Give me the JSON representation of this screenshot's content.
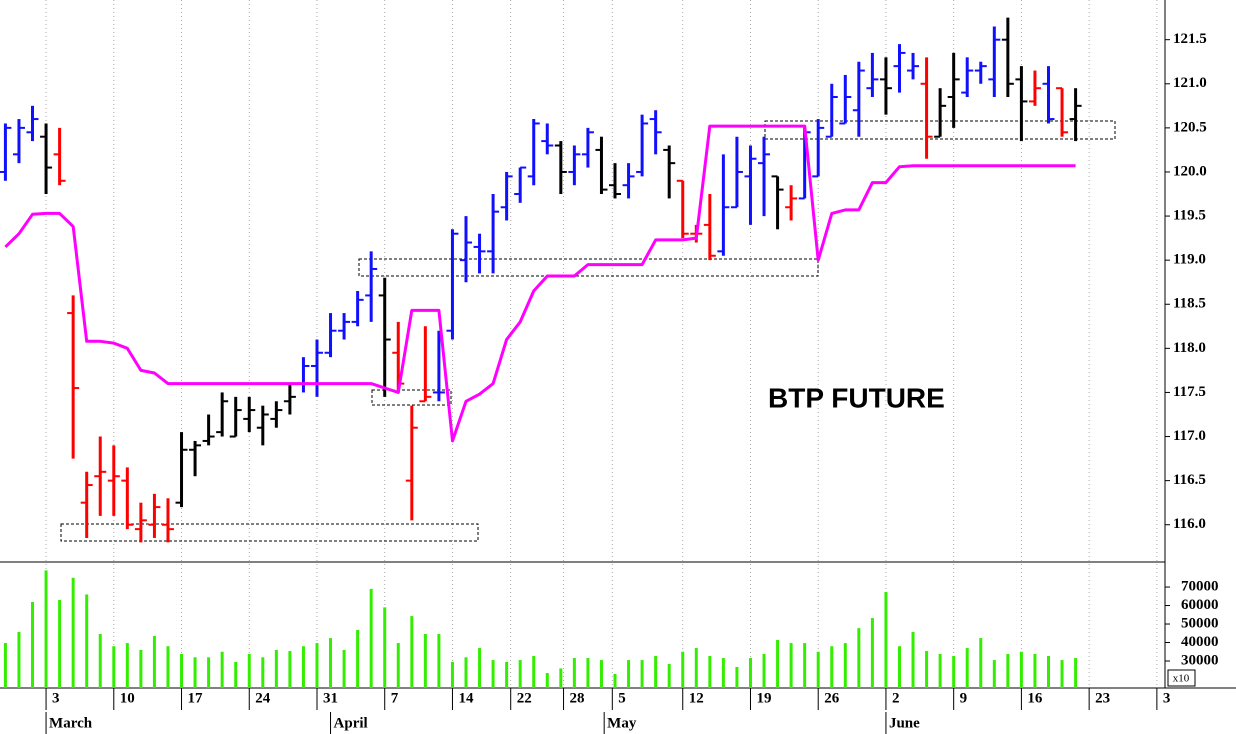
{
  "chart_data": [
    {
      "type": "ohlc",
      "title": "BTP FUTURE",
      "x": [
        0,
        1,
        2,
        3,
        4,
        5,
        6,
        7,
        8,
        9,
        10,
        11,
        12,
        13,
        14,
        15,
        16,
        17,
        18,
        19,
        20,
        21,
        22,
        23,
        24,
        25,
        26,
        27,
        28,
        29,
        30,
        31,
        32,
        33,
        34,
        35,
        36,
        37,
        38,
        39,
        40,
        41,
        42,
        43,
        44,
        45,
        46,
        47,
        48,
        49,
        50,
        51,
        52,
        53,
        54,
        55,
        56,
        57,
        58,
        59,
        60,
        61,
        62,
        63,
        64,
        65,
        66,
        67,
        68,
        69,
        70,
        71,
        72,
        73,
        74,
        75,
        76,
        77,
        78,
        79
      ],
      "open": [
        120.0,
        120.2,
        120.45,
        120.4,
        120.2,
        118.4,
        116.25,
        116.55,
        116.5,
        116.5,
        115.95,
        116.0,
        116.0,
        116.25,
        116.85,
        116.95,
        117.05,
        117.0,
        117.2,
        117.1,
        117.2,
        117.4,
        117.6,
        117.8,
        117.95,
        118.2,
        118.3,
        118.6,
        118.6,
        117.95,
        116.5,
        117.4,
        117.5,
        118.2,
        119.0,
        119.15,
        119.1,
        119.6,
        119.75,
        119.95,
        120.35,
        120.3,
        120.0,
        120.2,
        120.25,
        119.85,
        119.85,
        120.0,
        120.6,
        120.25,
        119.9,
        119.3,
        119.4,
        119.1,
        119.6,
        119.95,
        120.1,
        119.95,
        119.6,
        119.7,
        119.95,
        120.4,
        120.55,
        120.7,
        120.95,
        121.05,
        121.2,
        121.15,
        121.0,
        120.4,
        120.85,
        120.9,
        121.15,
        121.05,
        121.5,
        121.05,
        120.8,
        121.0,
        120.95,
        120.6
      ],
      "high": [
        120.55,
        120.6,
        120.75,
        120.55,
        120.5,
        118.6,
        116.6,
        117.0,
        116.9,
        116.65,
        116.25,
        116.35,
        116.3,
        117.05,
        116.95,
        117.25,
        117.5,
        117.45,
        117.45,
        117.35,
        117.4,
        117.6,
        117.9,
        118.1,
        118.4,
        118.4,
        118.65,
        119.1,
        118.8,
        118.3,
        117.35,
        118.25,
        118.2,
        119.35,
        119.5,
        119.3,
        119.75,
        120.0,
        120.05,
        120.6,
        120.55,
        120.35,
        120.3,
        120.5,
        120.4,
        120.1,
        120.1,
        120.65,
        120.7,
        120.3,
        119.9,
        119.4,
        119.75,
        120.2,
        120.4,
        120.3,
        120.4,
        119.95,
        119.85,
        120.5,
        120.6,
        121.0,
        121.1,
        121.25,
        121.35,
        121.3,
        121.45,
        121.35,
        121.3,
        120.95,
        121.35,
        121.3,
        121.25,
        121.65,
        121.75,
        121.2,
        121.15,
        121.2,
        120.95,
        120.95
      ],
      "low": [
        119.9,
        120.1,
        120.35,
        119.75,
        119.85,
        116.75,
        115.85,
        116.1,
        116.1,
        115.95,
        115.8,
        115.85,
        115.8,
        116.2,
        116.55,
        116.9,
        117.0,
        117.0,
        117.05,
        116.9,
        117.1,
        117.25,
        117.5,
        117.45,
        117.9,
        118.1,
        118.25,
        118.3,
        117.45,
        117.5,
        116.05,
        117.4,
        117.4,
        118.1,
        118.75,
        118.85,
        118.85,
        119.45,
        119.65,
        119.85,
        120.2,
        119.75,
        119.85,
        120.05,
        119.75,
        119.7,
        119.7,
        119.95,
        120.2,
        119.7,
        119.25,
        119.2,
        119.0,
        119.05,
        119.6,
        119.4,
        119.5,
        119.35,
        119.45,
        119.7,
        119.95,
        120.4,
        120.55,
        120.4,
        120.85,
        120.65,
        120.9,
        121.05,
        120.15,
        120.4,
        120.5,
        120.85,
        121.0,
        120.85,
        120.85,
        120.35,
        120.75,
        120.55,
        120.4,
        120.35
      ],
      "close": [
        120.5,
        120.5,
        120.6,
        120.05,
        119.9,
        117.55,
        116.45,
        116.6,
        116.55,
        116.0,
        116.05,
        116.2,
        115.95,
        116.85,
        116.9,
        117.0,
        117.4,
        117.3,
        117.3,
        117.25,
        117.3,
        117.45,
        117.8,
        117.95,
        118.2,
        118.3,
        118.55,
        118.9,
        118.1,
        117.6,
        117.1,
        117.45,
        117.5,
        119.3,
        119.2,
        119.1,
        119.55,
        119.95,
        120.05,
        120.55,
        120.3,
        120.0,
        120.2,
        120.45,
        119.8,
        119.75,
        119.95,
        120.55,
        120.45,
        120.1,
        119.3,
        119.3,
        119.05,
        119.6,
        120.0,
        120.15,
        120.2,
        119.8,
        119.7,
        120.45,
        120.5,
        120.85,
        120.85,
        121.15,
        121.05,
        120.95,
        121.35,
        121.2,
        120.4,
        120.75,
        121.05,
        121.15,
        121.2,
        121.5,
        121.0,
        120.8,
        120.95,
        120.6,
        120.45,
        120.75
      ],
      "colors": [
        "#1010ff",
        "#1010ff",
        "#1010ff",
        "#000000",
        "#ff0000",
        "#ff0000",
        "#ff0000",
        "#ff0000",
        "#ff0000",
        "#ff0000",
        "#ff0000",
        "#ff0000",
        "#ff0000",
        "#000000",
        "#000000",
        "#000000",
        "#000000",
        "#000000",
        "#000000",
        "#000000",
        "#000000",
        "#000000",
        "#1010ff",
        "#1010ff",
        "#1010ff",
        "#1010ff",
        "#1010ff",
        "#1010ff",
        "#000000",
        "#ff0000",
        "#ff0000",
        "#ff0000",
        "#1010ff",
        "#1010ff",
        "#1010ff",
        "#1010ff",
        "#1010ff",
        "#1010ff",
        "#1010ff",
        "#1010ff",
        "#1010ff",
        "#000000",
        "#1010ff",
        "#1010ff",
        "#000000",
        "#000000",
        "#1010ff",
        "#1010ff",
        "#1010ff",
        "#000000",
        "#ff0000",
        "#ff0000",
        "#ff0000",
        "#1010ff",
        "#1010ff",
        "#1010ff",
        "#1010ff",
        "#000000",
        "#ff0000",
        "#1010ff",
        "#1010ff",
        "#1010ff",
        "#1010ff",
        "#1010ff",
        "#1010ff",
        "#000000",
        "#1010ff",
        "#1010ff",
        "#ff0000",
        "#000000",
        "#000000",
        "#1010ff",
        "#1010ff",
        "#1010ff",
        "#000000",
        "#000000",
        "#ff0000",
        "#1010ff",
        "#ff0000",
        "#000000"
      ],
      "line": {
        "color": "#ff00ff",
        "values": [
          119.15,
          119.3,
          119.52,
          119.53,
          119.53,
          119.38,
          118.08,
          118.08,
          118.06,
          118.0,
          117.75,
          117.72,
          117.6,
          117.6,
          117.6,
          117.6,
          117.6,
          117.6,
          117.6,
          117.6,
          117.6,
          117.6,
          117.6,
          117.6,
          117.6,
          117.6,
          117.6,
          117.6,
          117.55,
          117.5,
          118.43,
          118.43,
          118.43,
          116.95,
          117.4,
          117.48,
          117.6,
          118.1,
          118.3,
          118.65,
          118.82,
          118.82,
          118.82,
          118.95,
          118.95,
          118.95,
          118.95,
          118.95,
          119.23,
          119.23,
          119.23,
          119.25,
          120.52,
          120.52,
          120.52,
          120.52,
          120.52,
          120.52,
          120.52,
          120.52,
          119.0,
          119.53,
          119.57,
          119.57,
          119.88,
          119.88,
          120.06,
          120.07,
          120.07,
          120.07,
          120.07,
          120.07,
          120.07,
          120.07,
          120.07,
          120.07,
          120.07,
          120.07,
          120.07,
          120.07
        ]
      },
      "xlim": [
        -0.4,
        85.6
      ],
      "ylim": [
        115.6,
        121.95
      ],
      "yticks": [
        {
          "value": 116.0,
          "label": "116.0"
        },
        116.5,
        {
          "value": 117.0,
          "label": "117.0"
        },
        117.5,
        {
          "value": 118.0,
          "label": "118.0"
        },
        118.5,
        {
          "value": 119.0,
          "label": "119.0"
        },
        119.5,
        {
          "value": 120.0,
          "label": "120.0"
        },
        120.5,
        {
          "value": 121.0,
          "label": "121.0"
        },
        121.5
      ]
    },
    {
      "type": "bar",
      "x": [
        0,
        1,
        2,
        3,
        4,
        5,
        6,
        7,
        8,
        9,
        10,
        11,
        12,
        13,
        14,
        15,
        16,
        17,
        18,
        19,
        20,
        21,
        22,
        23,
        24,
        25,
        26,
        27,
        28,
        29,
        30,
        31,
        32,
        33,
        34,
        35,
        36,
        37,
        38,
        39,
        40,
        41,
        42,
        43,
        44,
        45,
        46,
        47,
        48,
        49,
        50,
        51,
        52,
        53,
        54,
        55,
        56,
        57,
        58,
        59,
        60,
        61,
        62,
        63,
        64,
        65,
        66,
        67,
        68,
        69,
        70,
        71,
        72,
        73,
        74,
        75,
        76,
        77,
        78,
        79
      ],
      "values": [
        39700,
        45700,
        61900,
        79000,
        63000,
        75000,
        66000,
        44600,
        38000,
        39700,
        36000,
        43500,
        38000,
        33800,
        32000,
        32000,
        35000,
        29500,
        33800,
        32000,
        36000,
        35400,
        38000,
        39700,
        42400,
        36000,
        46800,
        69000,
        59000,
        39700,
        54300,
        44600,
        44600,
        29500,
        32000,
        37000,
        30500,
        29500,
        30500,
        32700,
        23500,
        26000,
        31600,
        31600,
        30500,
        23000,
        30500,
        30500,
        32700,
        28400,
        35000,
        37000,
        32700,
        31600,
        26800,
        31600,
        33800,
        41400,
        39700,
        39700,
        35000,
        38000,
        39700,
        47800,
        53200,
        67300,
        38000,
        45700,
        35400,
        33800,
        32700,
        37000,
        42400,
        30500,
        33800,
        35000,
        33800,
        32700,
        30500,
        31600
      ],
      "color": "#33ee00",
      "xlim": [
        -0.4,
        85.6
      ],
      "ylim": [
        15400,
        83000
      ],
      "yticks": [
        30000,
        40000,
        50000,
        60000,
        70000
      ],
      "multiplier": "x10",
      "xticks": [
        {
          "value": 3,
          "label": "3"
        },
        {
          "value": 8,
          "label": "10"
        },
        {
          "value": 13,
          "label": "17"
        },
        {
          "value": 18,
          "label": "24"
        },
        {
          "value": 23,
          "label": "31"
        },
        {
          "value": 28,
          "label": "7"
        },
        {
          "value": 33,
          "label": "14"
        },
        {
          "value": 37.3,
          "label": "22"
        },
        {
          "value": 41.2,
          "label": "28"
        },
        {
          "value": 44.8,
          "label": "5"
        },
        {
          "value": 50,
          "label": "12"
        },
        {
          "value": 55,
          "label": "19"
        },
        {
          "value": 60,
          "label": "26"
        },
        {
          "value": 65,
          "label": "2"
        },
        {
          "value": 70,
          "label": "9"
        },
        {
          "value": 75,
          "label": "16"
        },
        {
          "value": 80,
          "label": "23"
        },
        {
          "value": 85,
          "label": "3"
        }
      ],
      "month_ticks": [
        {
          "value": 3,
          "label": "March"
        },
        {
          "value": 24,
          "label": "April"
        },
        {
          "value": 44.2,
          "label": "May"
        },
        {
          "value": 65,
          "label": "June"
        }
      ]
    }
  ]
}
